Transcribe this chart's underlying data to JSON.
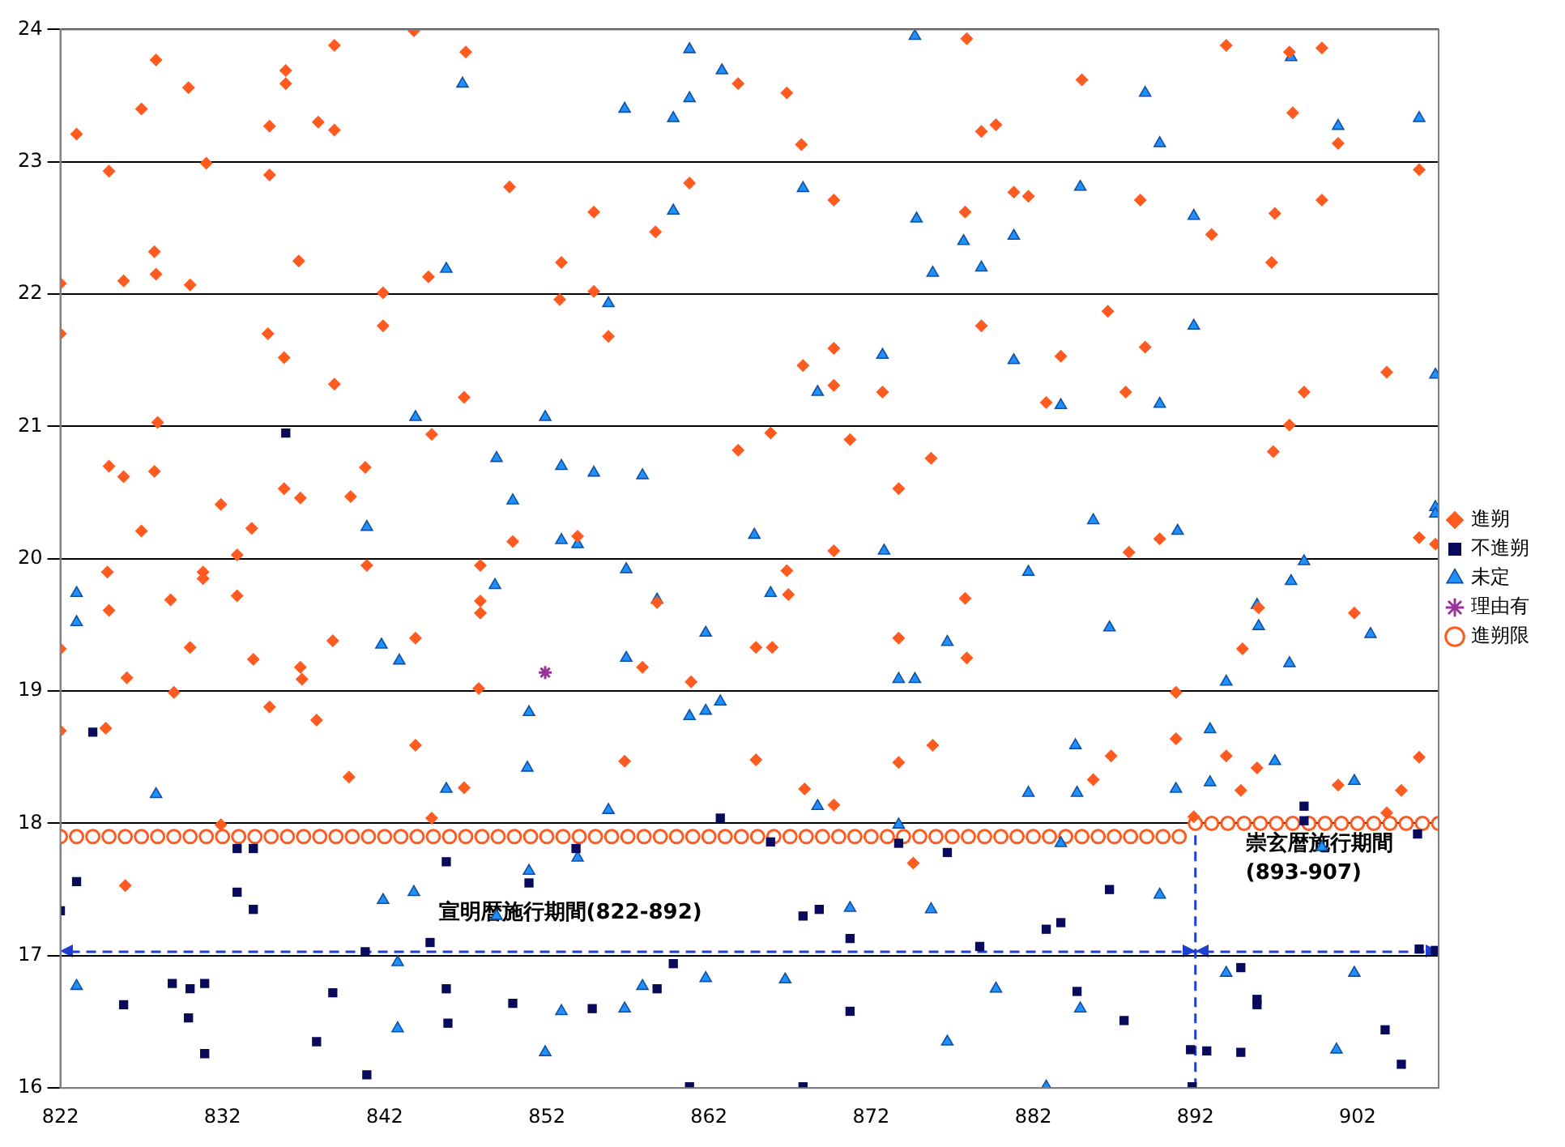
{
  "chart_data": {
    "type": "scatter",
    "xlim": [
      822,
      907
    ],
    "ylim": [
      16,
      24
    ],
    "xticks": [
      822,
      832,
      842,
      852,
      862,
      872,
      882,
      892,
      902
    ],
    "yticks": [
      16,
      17,
      18,
      19,
      20,
      21,
      22,
      23,
      24
    ],
    "grid": "y",
    "legend": "right",
    "series": [
      {
        "name": "進朔限",
        "color": "#ff5a1f",
        "marker": "circle",
        "x": [
          822,
          823,
          824,
          825,
          826,
          827,
          828,
          829,
          830,
          831,
          832,
          833,
          834,
          835,
          836,
          837,
          838,
          839,
          840,
          841,
          842,
          843,
          844,
          845,
          846,
          847,
          848,
          849,
          850,
          851,
          852,
          853,
          854,
          855,
          856,
          857,
          858,
          859,
          860,
          861,
          862,
          863,
          864,
          865,
          866,
          867,
          868,
          869,
          870,
          871,
          872,
          873,
          874,
          875,
          876,
          877,
          878,
          879,
          880,
          881,
          882,
          883,
          884,
          885,
          886,
          887,
          888,
          889,
          890,
          891,
          892,
          893,
          894,
          895,
          896,
          897,
          898,
          899,
          900,
          901,
          902,
          903,
          904,
          905,
          906,
          907
        ],
        "values": [
          17.9,
          17.9,
          17.9,
          17.9,
          17.9,
          17.9,
          17.9,
          17.9,
          17.9,
          17.9,
          17.9,
          17.9,
          17.9,
          17.9,
          17.9,
          17.9,
          17.9,
          17.9,
          17.9,
          17.9,
          17.9,
          17.9,
          17.9,
          17.9,
          17.9,
          17.9,
          17.9,
          17.9,
          17.9,
          17.9,
          17.9,
          17.9,
          17.9,
          17.9,
          17.9,
          17.9,
          17.9,
          17.9,
          17.9,
          17.9,
          17.9,
          17.9,
          17.9,
          17.9,
          17.9,
          17.9,
          17.9,
          17.9,
          17.9,
          17.9,
          17.9,
          17.9,
          17.9,
          17.9,
          17.9,
          17.9,
          17.9,
          17.9,
          17.9,
          17.9,
          17.9,
          17.9,
          17.9,
          17.9,
          17.9,
          17.9,
          17.9,
          17.9,
          17.9,
          17.9,
          18.0,
          18.0,
          18.0,
          18.0,
          18.0,
          18.0,
          18.0,
          18.0,
          18.0,
          18.0,
          18.0,
          18.0,
          18.0,
          18.0,
          18.0,
          18.0
        ]
      },
      {
        "name": "進朔",
        "color": "#ff5a1f",
        "marker": "diamond",
        "x": [
          822.0,
          822.0,
          822.0,
          822.0,
          823.0,
          825.0,
          824.8,
          825.0,
          824.9,
          825.0,
          825.9,
          826.0,
          825.9,
          826.1,
          827.0,
          827.0,
          827.8,
          827.8,
          827.9,
          827.9,
          828.0,
          828.8,
          829.0,
          829.9,
          830.0,
          830.0,
          830.8,
          830.8,
          831.0,
          831.9,
          831.9,
          832.9,
          832.9,
          833.8,
          833.9,
          834.8,
          834.9,
          834.9,
          834.9,
          835.8,
          835.9,
          835.9,
          835.8,
          836.7,
          836.8,
          836.8,
          836.9,
          837.8,
          837.9,
          838.8,
          838.9,
          838.9,
          838.9,
          839.8,
          839.9,
          840.8,
          840.9,
          841.9,
          841.9,
          843.8,
          843.9,
          843.9,
          844.9,
          844.9,
          844.7,
          846.9,
          847.0,
          846.9,
          847.9,
          847.9,
          847.9,
          847.8,
          849.7,
          849.9,
          852.8,
          852.9,
          853.9,
          854.9,
          854.9,
          855.8,
          856.8,
          857.9,
          858.7,
          858.8,
          860.8,
          860.9,
          863.8,
          863.8,
          864.9,
          864.9,
          865.8,
          865.9,
          866.8,
          867.7,
          866.8,
          866.9,
          867.8,
          867.9,
          869.7,
          869.7,
          869.7,
          869.7,
          869.7,
          870.7,
          872.7,
          873.7,
          873.7,
          873.7,
          874.6,
          875.7,
          875.8,
          877.9,
          877.8,
          877.8,
          877.9,
          878.8,
          878.8,
          879.7,
          880.8,
          881.7,
          882.8,
          883.7,
          885.0,
          885.7,
          886.8,
          886.6,
          887.7,
          887.9,
          888.6,
          888.9,
          889.8,
          890.8,
          890.8,
          891.9,
          893.0,
          893.9,
          893.9,
          894.9,
          894.8,
          895.8,
          895.9,
          896.7,
          896.9,
          896.8,
          897.8,
          898.0,
          897.8,
          898.7,
          899.8,
          899.8,
          900.8,
          900.8,
          901.8,
          903.8,
          903.8,
          904.7,
          905.8,
          905.8,
          905.8,
          906.8
        ],
        "values": [
          22.08,
          21.7,
          19.32,
          18.7,
          23.21,
          20.7,
          18.72,
          22.93,
          19.9,
          19.61,
          20.62,
          17.53,
          22.1,
          19.1,
          23.4,
          20.21,
          20.66,
          22.32,
          23.77,
          22.15,
          21.03,
          19.69,
          18.99,
          23.56,
          22.07,
          19.33,
          19.9,
          19.85,
          22.99,
          20.41,
          17.99,
          20.03,
          19.72,
          20.23,
          19.24,
          21.7,
          23.27,
          22.9,
          18.88,
          21.52,
          23.59,
          23.69,
          20.53,
          22.25,
          20.46,
          19.18,
          19.09,
          18.78,
          23.3,
          19.38,
          23.24,
          21.32,
          23.88,
          18.35,
          20.47,
          20.69,
          19.95,
          22.01,
          21.76,
          23.99,
          19.4,
          18.59,
          20.94,
          18.04,
          22.13,
          18.27,
          23.83,
          21.22,
          19.59,
          19.95,
          19.68,
          19.02,
          22.81,
          20.13,
          21.96,
          22.24,
          20.17,
          22.02,
          22.62,
          21.68,
          18.47,
          19.18,
          22.47,
          19.67,
          22.84,
          19.07,
          20.82,
          23.59,
          19.33,
          18.48,
          20.95,
          19.33,
          23.52,
          23.13,
          19.91,
          19.73,
          21.46,
          18.26,
          21.31,
          21.59,
          22.71,
          20.06,
          18.14,
          20.9,
          21.26,
          20.53,
          19.4,
          18.46,
          17.7,
          20.76,
          18.59,
          23.93,
          22.62,
          19.7,
          19.25,
          21.76,
          23.23,
          23.28,
          22.77,
          22.74,
          21.18,
          21.53,
          23.62,
          18.33,
          18.51,
          21.87,
          21.26,
          20.05,
          22.71,
          21.6,
          20.15,
          18.99,
          18.64,
          18.05,
          22.45,
          23.88,
          18.51,
          19.32,
          18.25,
          18.42,
          19.63,
          22.24,
          22.61,
          20.81,
          21.01,
          23.37,
          23.83,
          21.26,
          23.86,
          22.71,
          18.29,
          23.14,
          19.59,
          21.41,
          18.08,
          18.25,
          18.5,
          22.94,
          20.16,
          20.11
        ]
      },
      {
        "name": "不進朔",
        "color": "#0a0a5a",
        "marker": "square",
        "x": [
          822.0,
          823.0,
          824.0,
          825.9,
          828.9,
          830.0,
          829.9,
          830.9,
          830.9,
          832.9,
          832.9,
          833.9,
          833.9,
          835.9,
          837.8,
          838.8,
          840.8,
          840.9,
          844.8,
          845.8,
          845.8,
          845.9,
          849.9,
          850.9,
          853.8,
          854.8,
          858.8,
          859.8,
          860.8,
          862.7,
          865.8,
          867.8,
          868.8,
          867.8,
          870.7,
          870.7,
          873.7,
          876.7,
          878.7,
          882.8,
          883.7,
          884.7,
          886.7,
          887.6,
          891.7,
          891.8,
          892.7,
          894.8,
          894.8,
          895.8,
          895.8,
          898.7,
          898.7,
          903.7,
          904.7,
          905.7,
          905.8,
          906.8
        ],
        "values": [
          17.34,
          17.56,
          18.69,
          16.63,
          16.79,
          16.75,
          16.53,
          16.79,
          16.26,
          17.81,
          17.48,
          17.81,
          17.35,
          20.95,
          16.35,
          16.72,
          17.03,
          16.1,
          17.1,
          17.71,
          16.75,
          16.49,
          16.64,
          17.55,
          17.81,
          16.6,
          16.75,
          16.94,
          16.01,
          18.04,
          17.86,
          17.3,
          17.35,
          16.01,
          17.13,
          16.58,
          17.85,
          17.78,
          17.07,
          17.2,
          17.25,
          16.73,
          17.5,
          16.51,
          16.29,
          16.01,
          16.28,
          16.91,
          16.27,
          16.63,
          16.67,
          18.13,
          18.02,
          16.44,
          16.18,
          17.92,
          17.05,
          17.04
        ]
      },
      {
        "name": "未定",
        "color": "#1e90ff",
        "marker": "triangle",
        "x": [
          823.0,
          823.0,
          823.0,
          827.9,
          840.9,
          841.8,
          841.9,
          842.9,
          842.8,
          843.9,
          843.8,
          842.8,
          845.8,
          845.8,
          846.8,
          848.9,
          848.8,
          848.9,
          849.9,
          850.9,
          850.8,
          850.9,
          851.9,
          851.9,
          852.9,
          852.9,
          852.9,
          853.9,
          853.9,
          854.9,
          855.8,
          855.8,
          856.8,
          856.9,
          856.9,
          856.8,
          857.9,
          857.9,
          858.8,
          859.8,
          859.8,
          860.8,
          860.8,
          860.8,
          861.8,
          861.8,
          861.8,
          862.7,
          862.8,
          864.8,
          865.8,
          866.7,
          867.8,
          868.7,
          868.7,
          870.7,
          872.7,
          872.8,
          873.7,
          873.7,
          874.7,
          874.8,
          874.7,
          875.8,
          875.7,
          876.7,
          876.7,
          877.7,
          878.8,
          879.7,
          880.8,
          880.8,
          881.7,
          881.7,
          882.8,
          883.7,
          883.7,
          884.9,
          884.6,
          884.7,
          884.9,
          885.7,
          886.7,
          888.9,
          889.8,
          889.8,
          889.8,
          890.8,
          890.9,
          891.9,
          891.9,
          892.9,
          892.9,
          893.9,
          893.9,
          895.8,
          895.9,
          896.9,
          897.9,
          897.8,
          897.9,
          898.7,
          899.8,
          900.7,
          900.8,
          901.8,
          901.8,
          902.8,
          905.8,
          906.8,
          906.8,
          906.8
        ],
        "values": [
          19.74,
          19.52,
          16.77,
          18.22,
          20.24,
          19.35,
          17.42,
          19.23,
          16.95,
          21.07,
          17.48,
          16.45,
          22.19,
          18.26,
          23.59,
          20.76,
          19.8,
          17.3,
          20.44,
          18.84,
          18.42,
          17.64,
          21.07,
          16.27,
          20.7,
          20.14,
          16.58,
          20.11,
          17.74,
          20.65,
          21.93,
          18.1,
          23.4,
          19.92,
          19.25,
          16.6,
          20.63,
          16.77,
          19.69,
          22.63,
          23.33,
          23.48,
          23.85,
          18.81,
          19.44,
          18.85,
          16.83,
          18.92,
          23.69,
          20.18,
          19.74,
          16.82,
          22.8,
          21.26,
          18.13,
          17.36,
          21.54,
          20.06,
          17.99,
          19.09,
          19.09,
          22.57,
          23.95,
          22.16,
          17.35,
          19.37,
          16.35,
          22.4,
          22.2,
          16.75,
          22.44,
          21.5,
          19.9,
          18.23,
          16.01,
          21.16,
          17.85,
          22.81,
          18.59,
          18.23,
          16.6,
          20.29,
          19.48,
          23.52,
          23.14,
          21.17,
          17.46,
          18.26,
          20.21,
          22.59,
          21.76,
          18.71,
          18.31,
          19.07,
          16.87,
          19.65,
          19.49,
          18.47,
          23.79,
          19.21,
          19.83,
          19.98,
          17.82,
          16.29,
          23.27,
          18.32,
          16.87,
          19.43,
          23.33,
          21.39,
          20.39,
          20.34
        ]
      },
      {
        "name": "理由有",
        "color": "#993399",
        "marker": "cross",
        "x": [
          851.9
        ],
        "values": [
          19.14
        ]
      }
    ],
    "ref_lines": [
      {
        "axis": "x",
        "value": 892,
        "color": "#1f3fd0",
        "line_style": "dashed"
      },
      {
        "axis": "y",
        "value": 17.03,
        "color": "#1f3fd0",
        "line_style": "dashed"
      }
    ],
    "annotations": [
      "宣明暦施行期間(822-892)",
      "崇玄暦施行期間\n(893-907)"
    ]
  }
}
